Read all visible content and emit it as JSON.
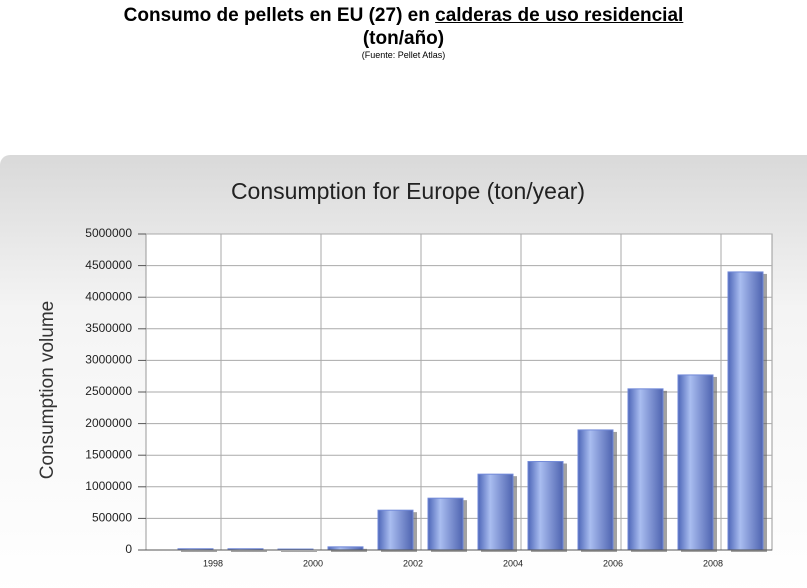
{
  "header": {
    "title_start": "Consumo de pellets en EU (27) en",
    "title_underlined": "calderas de uso residencial",
    "title_line2": "(ton/año)",
    "source": "(Fuente: Pellet Atlas)"
  },
  "chart_data": {
    "type": "bar",
    "title": "Consumption for Europe (ton/year)",
    "y_label": "Consumption volume",
    "categories": [
      null,
      "1998",
      null,
      "2000",
      null,
      "2002",
      null,
      "2004",
      null,
      "2006",
      null,
      "2008"
    ],
    "values": [
      20000,
      20000,
      15000,
      50000,
      630000,
      820000,
      1200000,
      1400000,
      1900000,
      2550000,
      2770000,
      4400000
    ],
    "color": "#7189d8",
    "ylim": [
      0,
      5000000
    ],
    "yticks": [
      0,
      500000,
      1000000,
      1500000,
      2000000,
      2500000,
      3000000,
      3500000,
      4000000,
      4500000,
      5000000
    ],
    "grid": true
  }
}
